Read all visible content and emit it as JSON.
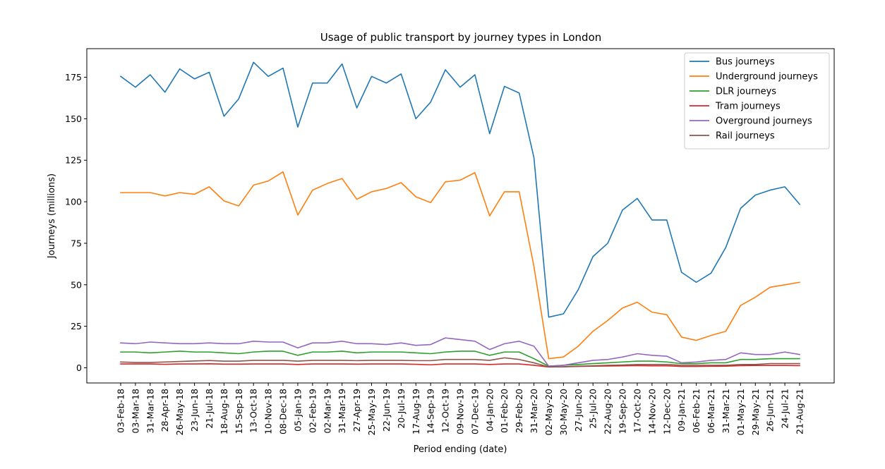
{
  "chart_data": {
    "type": "line",
    "title": "Usage of public transport by journey types in London",
    "xlabel": "Period ending (date)",
    "ylabel": "Journeys (millions)",
    "ylim": [
      -5,
      192
    ],
    "yticks": [
      0,
      25,
      50,
      75,
      100,
      125,
      150,
      175
    ],
    "grid": false,
    "legend_position": "top-right",
    "categories": [
      "03-Feb-18",
      "03-Mar-18",
      "31-Mar-18",
      "28-Apr-18",
      "26-May-18",
      "23-Jun-18",
      "21-Jul-18",
      "18-Aug-18",
      "15-Sep-18",
      "13-Oct-18",
      "10-Nov-18",
      "08-Dec-18",
      "05-Jan-19",
      "02-Feb-19",
      "02-Mar-19",
      "31-Mar-19",
      "27-Apr-19",
      "25-May-19",
      "22-Jun-19",
      "20-Jul-19",
      "17-Aug-19",
      "14-Sep-19",
      "12-Oct-19",
      "09-Nov-19",
      "07-Dec-19",
      "04-Jan-20",
      "01-Feb-20",
      "29-Feb-20",
      "31-Mar-20",
      "02-May-20",
      "30-May-20",
      "27-Jun-20",
      "25-Jul-20",
      "22-Aug-20",
      "19-Sep-20",
      "17-Oct-20",
      "14-Nov-20",
      "12-Dec-20",
      "09-Jan-21",
      "06-Feb-21",
      "06-Mar-21",
      "31-Mar-21",
      "01-May-21",
      "29-May-21",
      "26-Jun-21",
      "24-Jul-21",
      "21-Aug-21"
    ],
    "series": [
      {
        "name": "Bus journeys",
        "color": "#1f77b4",
        "values": [
          175.5,
          169,
          176.5,
          166,
          180,
          174,
          178,
          151.5,
          162,
          184,
          175.5,
          180.5,
          145,
          171.5,
          171.5,
          183,
          156.5,
          175.5,
          171.5,
          177,
          150,
          160,
          179.5,
          169,
          176.5,
          141,
          169.5,
          165.5,
          126.5,
          30.5,
          32.5,
          47,
          67,
          75,
          95,
          102,
          89,
          89,
          57.5,
          51.5,
          57,
          72.5,
          96,
          104,
          107,
          109,
          98.5
        ]
      },
      {
        "name": "Underground journeys",
        "color": "#ff7f0e",
        "values": [
          105.5,
          105.5,
          105.5,
          103.5,
          105.5,
          104.5,
          109,
          100.5,
          97.5,
          110,
          112.5,
          118,
          92,
          107,
          111,
          114,
          101.5,
          106,
          108,
          111.5,
          103,
          99.5,
          112,
          113,
          117.5,
          91.5,
          106,
          106,
          61,
          5.5,
          6.5,
          13,
          22,
          28.5,
          36,
          39.5,
          33.5,
          32,
          18.5,
          16.5,
          19.5,
          22,
          37.5,
          42.5,
          48.5,
          50,
          51.5
        ]
      },
      {
        "name": "DLR journeys",
        "color": "#2ca02c",
        "values": [
          9.5,
          9.5,
          9,
          9.5,
          10,
          9.5,
          9.5,
          9,
          8.5,
          9.5,
          10,
          10,
          7.5,
          9.5,
          9.5,
          10,
          9,
          9.5,
          9.5,
          9.5,
          9,
          8.5,
          9.5,
          10,
          10,
          7.5,
          9.5,
          9.5,
          5.5,
          1,
          1.5,
          2,
          2.5,
          3,
          3.5,
          4,
          4,
          3.5,
          2.5,
          2.5,
          3,
          3,
          5,
          5,
          5.5,
          5.5,
          5.5
        ]
      },
      {
        "name": "Tram journeys",
        "color": "#d62728",
        "values": [
          2.3,
          2.3,
          2.3,
          2.1,
          2.3,
          2.3,
          2.4,
          2.2,
          2.2,
          2.3,
          2.3,
          2.3,
          2,
          2.3,
          2.3,
          2.3,
          2.2,
          2.3,
          2.3,
          2.3,
          2.1,
          1.8,
          2.3,
          2.3,
          2.3,
          2,
          2.3,
          2.3,
          1.5,
          0.5,
          0.6,
          0.8,
          1,
          1.1,
          1.2,
          1.3,
          1.2,
          1.2,
          0.8,
          0.8,
          0.9,
          1,
          1.3,
          1.4,
          1.4,
          1.4,
          1.3
        ]
      },
      {
        "name": "Overground journeys",
        "color": "#9467bd",
        "values": [
          15,
          14.5,
          15.5,
          15,
          14.5,
          14.5,
          15,
          14.5,
          14.5,
          16,
          15.5,
          15.5,
          12,
          15,
          15,
          16,
          14.5,
          14.5,
          14,
          15,
          13.5,
          14,
          18,
          17,
          16,
          11,
          14.5,
          16,
          13,
          1,
          1.5,
          3,
          4.5,
          5,
          6.5,
          8.5,
          7.5,
          7,
          3,
          3.5,
          4.5,
          5,
          9,
          8,
          8,
          9.5,
          8
        ]
      },
      {
        "name": "Rail journeys",
        "color": "#8c564b",
        "values": [
          3.5,
          3.2,
          3.2,
          3.5,
          3.8,
          4.1,
          4.4,
          4,
          4,
          4.5,
          4.5,
          4.5,
          4,
          4.5,
          4.5,
          4.5,
          4.3,
          4.5,
          4.5,
          4.5,
          4.3,
          4.3,
          5,
          5,
          5,
          4.5,
          6,
          5,
          3,
          0.5,
          0.6,
          1,
          1.2,
          1.5,
          1.7,
          2,
          2,
          2,
          1.5,
          1.5,
          1.5,
          1.5,
          2,
          2,
          2.5,
          2.5,
          2.5
        ]
      }
    ]
  }
}
